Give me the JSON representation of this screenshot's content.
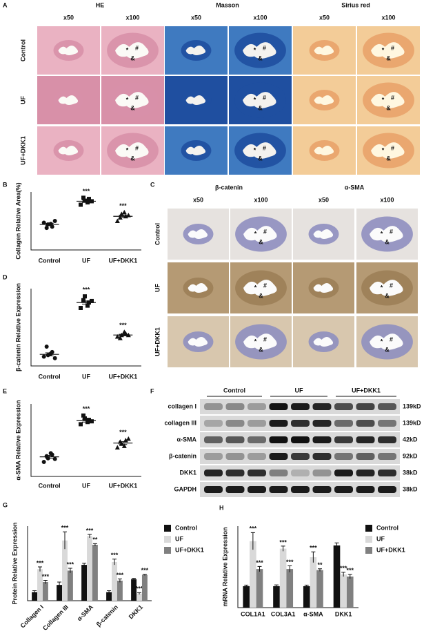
{
  "figure": {
    "panel_labels": [
      "A",
      "B",
      "C",
      "D",
      "E",
      "F",
      "G",
      "H"
    ],
    "panel_a": {
      "stains": [
        "HE",
        "Masson",
        "Sirius red"
      ],
      "magnifications": [
        "x50",
        "x100"
      ],
      "rows": [
        "Control",
        "UF",
        "UF+DKK1"
      ],
      "symbols": [
        "*",
        "#",
        "&"
      ]
    },
    "panel_c": {
      "stains": [
        "β-catenin",
        "α-SMA"
      ],
      "magnifications": [
        "x50",
        "x100"
      ],
      "rows": [
        "Control",
        "UF",
        "UF+DKK1"
      ],
      "symbols": [
        "*",
        "#",
        "&"
      ]
    },
    "panel_f": {
      "groups": [
        "Control",
        "UF",
        "UF+DKK1"
      ],
      "proteins": [
        "collagen I",
        "collagen III",
        "α-SMA",
        "β-catenin",
        "DKK1",
        "GAPDH"
      ],
      "sizes": [
        "139kD",
        "139kD",
        "42kD",
        "92kD",
        "38kD",
        "38kD"
      ]
    }
  },
  "chart_data": [
    {
      "type": "dot",
      "ylabel": "Collagen Relative Area(%)",
      "ylim": [
        0,
        100
      ],
      "groups": [
        {
          "name": "Control",
          "marker": "circle",
          "values": [
            47,
            44,
            40,
            38,
            45,
            50
          ],
          "mean": 44,
          "sem": 2
        },
        {
          "name": "UF",
          "marker": "square",
          "values": [
            78,
            85,
            88,
            90,
            82,
            84
          ],
          "mean": 84,
          "sem": 2,
          "annotation": "***"
        },
        {
          "name": "UF+DKK1",
          "marker": "triangle",
          "values": [
            50,
            62,
            58,
            56,
            65,
            60
          ],
          "mean": 58,
          "sem": 2,
          "annotation": "***"
        }
      ]
    },
    {
      "type": "dot",
      "ylabel": "β-catenin Relative Expression",
      "ylim": [
        0,
        100
      ],
      "groups": [
        {
          "name": "Control",
          "marker": "circle",
          "values": [
            12,
            14,
            18,
            25,
            16,
            10
          ],
          "mean": 15,
          "sem": 2
        },
        {
          "name": "UF",
          "marker": "square",
          "values": [
            75,
            90,
            82,
            85,
            78,
            84
          ],
          "mean": 82,
          "sem": 2,
          "annotation": "***"
        },
        {
          "name": "UF+DKK1",
          "marker": "triangle",
          "values": [
            38,
            40,
            42,
            36,
            44,
            40
          ],
          "mean": 40,
          "sem": 1,
          "annotation": "***"
        }
      ]
    },
    {
      "type": "dot",
      "ylabel": "α-SMA Relative Expression",
      "ylim": [
        0,
        100
      ],
      "groups": [
        {
          "name": "Control",
          "marker": "circle",
          "values": [
            20,
            25,
            30,
            28,
            32,
            24
          ],
          "mean": 27,
          "sem": 2
        },
        {
          "name": "UF",
          "marker": "square",
          "values": [
            72,
            80,
            78,
            84,
            75,
            76
          ],
          "mean": 77,
          "sem": 2,
          "annotation": "***"
        },
        {
          "name": "UF+DKK1",
          "marker": "triangle",
          "values": [
            40,
            45,
            50,
            48,
            42,
            52
          ],
          "mean": 46,
          "sem": 2,
          "annotation": "***"
        }
      ]
    },
    {
      "type": "bar",
      "ylabel": "Protein Relative Expression",
      "ylim": [
        0,
        2.6
      ],
      "rotate_labels": true,
      "categories": [
        "Collagen I",
        "Collagen III",
        "α-SMA",
        "β-catenin",
        "DKK1"
      ],
      "series": [
        {
          "name": "Control",
          "color": "#111111",
          "values": [
            0.3,
            0.55,
            1.25,
            0.3,
            0.75
          ],
          "errors": [
            0.05,
            0.1,
            0.06,
            0.05,
            0.03
          ]
        },
        {
          "name": "UF",
          "color": "#d9d9d9",
          "values": [
            1.1,
            2.1,
            2.25,
            1.35,
            0.25
          ],
          "errors": [
            0.08,
            0.3,
            0.06,
            0.1,
            0.03
          ],
          "annotations": [
            "***",
            "***",
            "***",
            "***",
            "***"
          ]
        },
        {
          "name": "UF+DKK1",
          "color": "#808080",
          "values": [
            0.65,
            1.05,
            1.95,
            0.7,
            0.9
          ],
          "errors": [
            0.06,
            0.08,
            0.04,
            0.06,
            0.02
          ],
          "annotations": [
            "***",
            "***",
            "**",
            "***",
            "***"
          ]
        }
      ]
    },
    {
      "type": "bar",
      "ylabel": "mRNA Relative Expression",
      "ylim": [
        0,
        3.8
      ],
      "rotate_labels": false,
      "categories": [
        "COL1A1",
        "COL3A1",
        "α-SMA",
        "DKK1"
      ],
      "series": [
        {
          "name": "Control",
          "color": "#111111",
          "values": [
            1,
            1,
            1,
            2.9
          ],
          "errors": [
            0.05,
            0.06,
            0.05,
            0.12
          ]
        },
        {
          "name": "UF",
          "color": "#d9d9d9",
          "values": [
            3.1,
            2.75,
            2.35,
            1.55
          ],
          "errors": [
            0.4,
            0.12,
            0.25,
            0.1
          ],
          "annotations": [
            "***",
            "***",
            "***",
            "***"
          ]
        },
        {
          "name": "UF+DKK1",
          "color": "#808080",
          "values": [
            1.8,
            1.8,
            1.75,
            1.45
          ],
          "errors": [
            0.12,
            0.15,
            0.06,
            0.1
          ],
          "annotations": [
            "***",
            "***",
            "**",
            "***"
          ]
        }
      ]
    }
  ]
}
